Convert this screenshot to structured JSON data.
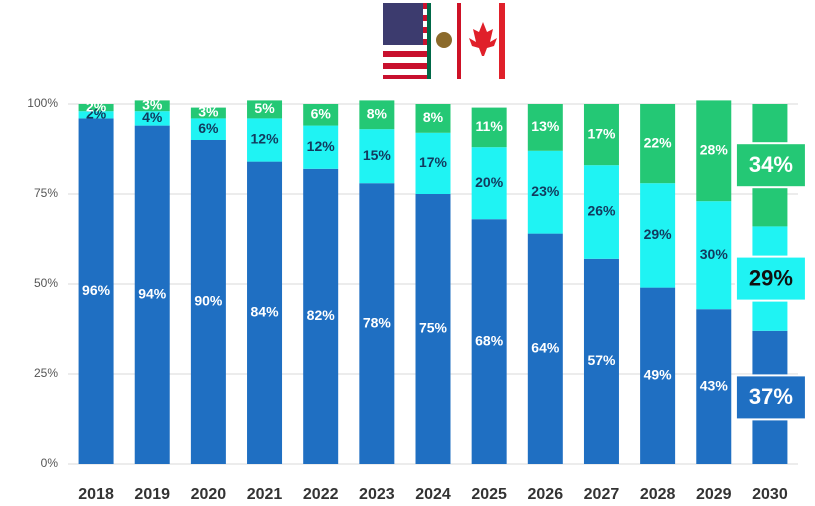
{
  "chart_data": {
    "type": "stacked_bar",
    "categories": [
      "2018",
      "2019",
      "2020",
      "2021",
      "2022",
      "2023",
      "2024",
      "2025",
      "2026",
      "2027",
      "2028",
      "2029",
      "2030"
    ],
    "series": [
      {
        "color": "#1f6fc2",
        "values": [
          96,
          94,
          90,
          84,
          82,
          78,
          75,
          68,
          64,
          57,
          49,
          43,
          37
        ],
        "value_labels": [
          "96%",
          "94%",
          "90%",
          "84%",
          "82%",
          "78%",
          "75%",
          "68%",
          "64%",
          "57%",
          "49%",
          "43%",
          "37%"
        ]
      },
      {
        "color": "#1ff3f3",
        "values": [
          2,
          4,
          6,
          12,
          12,
          15,
          17,
          20,
          23,
          26,
          29,
          30,
          29
        ],
        "value_labels": [
          "2%",
          "4%",
          "6%",
          "12%",
          "12%",
          "15%",
          "17%",
          "20%",
          "23%",
          "26%",
          "29%",
          "30%",
          "29%"
        ]
      },
      {
        "color": "#24c875",
        "values": [
          2,
          3,
          3,
          5,
          6,
          8,
          8,
          11,
          13,
          17,
          22,
          28,
          34
        ],
        "value_labels": [
          "2%",
          "3%",
          "3%",
          "5%",
          "6%",
          "8%",
          "8%",
          "11%",
          "13%",
          "17%",
          "22%",
          "28%",
          "34%"
        ]
      }
    ],
    "ylim": [
      0,
      100
    ],
    "yticks": [
      {
        "value": 0,
        "label": "0%"
      },
      {
        "value": 25,
        "label": "25%"
      },
      {
        "value": 50,
        "label": "50%"
      },
      {
        "value": 75,
        "label": "75%"
      },
      {
        "value": 100,
        "label": "100%"
      }
    ],
    "grid": true
  }
}
